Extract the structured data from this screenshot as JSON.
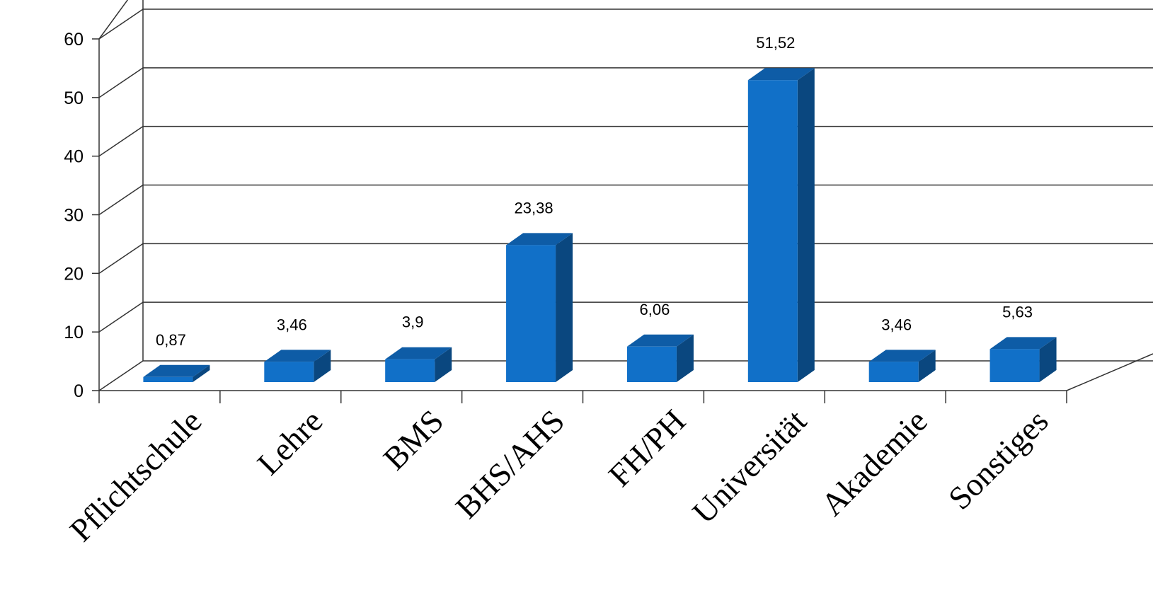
{
  "chart_data": {
    "type": "bar",
    "categories": [
      "Pflichtschule",
      "Lehre",
      "BMS",
      "BHS/AHS",
      "FH/PH",
      "Universität",
      "Akademie",
      "Sonstiges"
    ],
    "values": [
      0.87,
      3.46,
      3.9,
      23.38,
      6.06,
      51.52,
      3.46,
      5.63
    ],
    "value_labels": [
      "0,87",
      "3,46",
      "3,9",
      "23,38",
      "6,06",
      "51,52",
      "3,46",
      "5,63"
    ],
    "y_tick_labels": [
      "0",
      "10",
      "20",
      "30",
      "40",
      "50",
      "60"
    ],
    "y_ticks": [
      0,
      10,
      20,
      30,
      40,
      50,
      60
    ],
    "ylim": [
      0,
      60
    ],
    "title": "",
    "xlabel": "",
    "ylabel": "",
    "grid": true,
    "legend": "none",
    "style": "3d-column",
    "colors": {
      "bar_front": "#1170c8",
      "bar_top": "#0e5ca6",
      "bar_side": "#0a477f",
      "gridline": "#333333"
    }
  }
}
